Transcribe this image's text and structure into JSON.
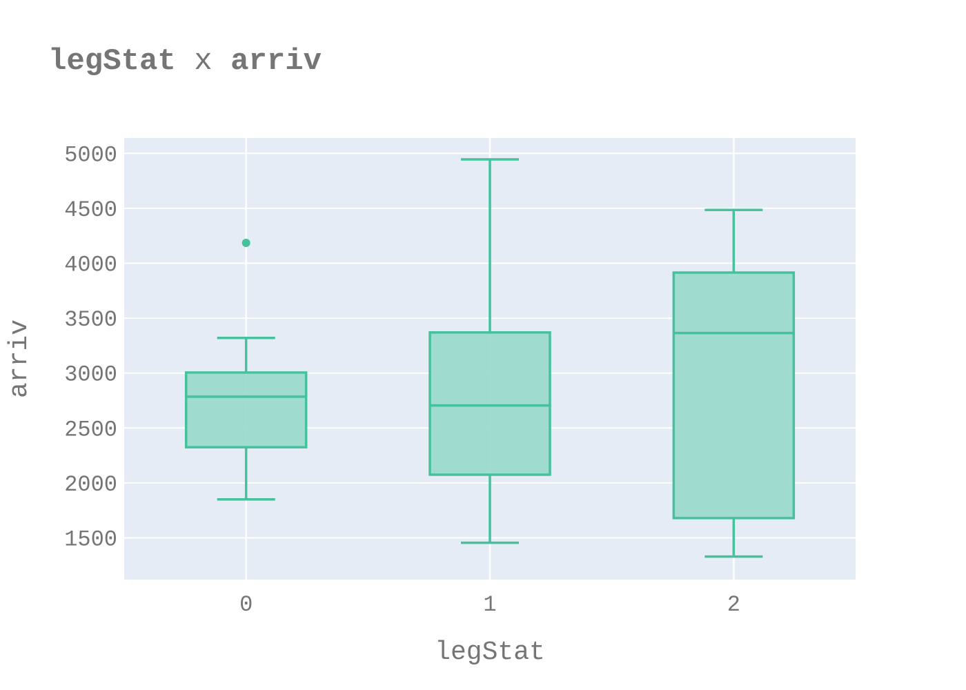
{
  "title": {
    "part1": "legStat",
    "sep": " x ",
    "part2": "arriv"
  },
  "chart_data": {
    "type": "box",
    "xlabel": "legStat",
    "ylabel": "arriv",
    "categories": [
      "0",
      "1",
      "2"
    ],
    "ylim": [
      1120,
      5140
    ],
    "yticks": [
      1500,
      2000,
      2500,
      3000,
      3500,
      4000,
      4500,
      5000
    ],
    "grid": true,
    "legend": "none",
    "colors": {
      "box_stroke": "#45c19c",
      "box_fill": "#99d9cb",
      "plot_bg": "#e5ecf6",
      "grid": "#ffffff"
    },
    "boxes": [
      {
        "category": "0",
        "lower_whisker": 1850,
        "q1": 2325,
        "median": 2785,
        "q3": 3005,
        "upper_whisker": 3320,
        "outliers": [
          4185
        ]
      },
      {
        "category": "1",
        "lower_whisker": 1455,
        "q1": 2075,
        "median": 2705,
        "q3": 3370,
        "upper_whisker": 4945,
        "outliers": []
      },
      {
        "category": "2",
        "lower_whisker": 1330,
        "q1": 1680,
        "median": 3365,
        "q3": 3915,
        "upper_whisker": 4485,
        "outliers": []
      }
    ]
  }
}
